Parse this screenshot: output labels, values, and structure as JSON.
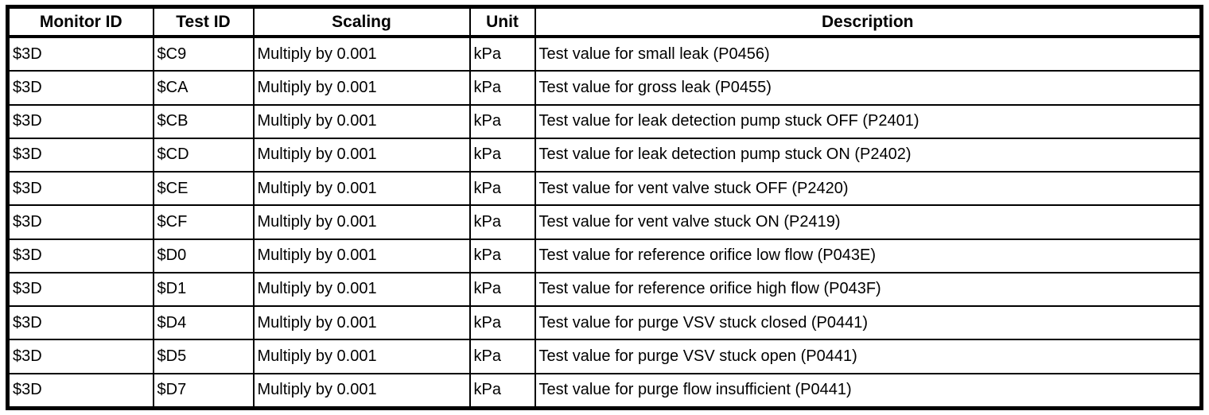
{
  "page": {
    "background_color": "#ffffff",
    "border_color": "#000000",
    "text_color": "#000000"
  },
  "table": {
    "columns": [
      {
        "key": "monitor_id",
        "label": "Monitor ID"
      },
      {
        "key": "test_id",
        "label": "Test ID"
      },
      {
        "key": "scaling",
        "label": "Scaling"
      },
      {
        "key": "unit",
        "label": "Unit"
      },
      {
        "key": "description",
        "label": "Description"
      }
    ],
    "rows": [
      {
        "monitor_id": "$3D",
        "test_id": "$C9",
        "scaling": "Multiply by 0.001",
        "unit": "kPa",
        "description": "Test value for small leak (P0456)"
      },
      {
        "monitor_id": "$3D",
        "test_id": "$CA",
        "scaling": "Multiply by 0.001",
        "unit": "kPa",
        "description": "Test value for gross leak (P0455)"
      },
      {
        "monitor_id": "$3D",
        "test_id": "$CB",
        "scaling": "Multiply by 0.001",
        "unit": "kPa",
        "description": "Test value for leak detection pump stuck OFF (P2401)"
      },
      {
        "monitor_id": "$3D",
        "test_id": "$CD",
        "scaling": "Multiply by 0.001",
        "unit": "kPa",
        "description": "Test value for leak detection pump stuck ON (P2402)"
      },
      {
        "monitor_id": "$3D",
        "test_id": "$CE",
        "scaling": "Multiply by 0.001",
        "unit": "kPa",
        "description": "Test value for vent valve stuck OFF (P2420)"
      },
      {
        "monitor_id": "$3D",
        "test_id": "$CF",
        "scaling": "Multiply by 0.001",
        "unit": "kPa",
        "description": "Test value for vent valve stuck ON (P2419)"
      },
      {
        "monitor_id": "$3D",
        "test_id": "$D0",
        "scaling": "Multiply by 0.001",
        "unit": "kPa",
        "description": "Test value for reference orifice low flow (P043E)"
      },
      {
        "monitor_id": "$3D",
        "test_id": "$D1",
        "scaling": "Multiply by 0.001",
        "unit": "kPa",
        "description": "Test value for reference orifice high flow (P043F)"
      },
      {
        "monitor_id": "$3D",
        "test_id": "$D4",
        "scaling": "Multiply by 0.001",
        "unit": "kPa",
        "description": "Test value for purge VSV stuck closed (P0441)"
      },
      {
        "monitor_id": "$3D",
        "test_id": "$D5",
        "scaling": "Multiply by 0.001",
        "unit": "kPa",
        "description": "Test value for purge VSV stuck open (P0441)"
      },
      {
        "monitor_id": "$3D",
        "test_id": "$D7",
        "scaling": "Multiply by 0.001",
        "unit": "kPa",
        "description": "Test value for purge flow insufficient (P0441)"
      }
    ]
  }
}
